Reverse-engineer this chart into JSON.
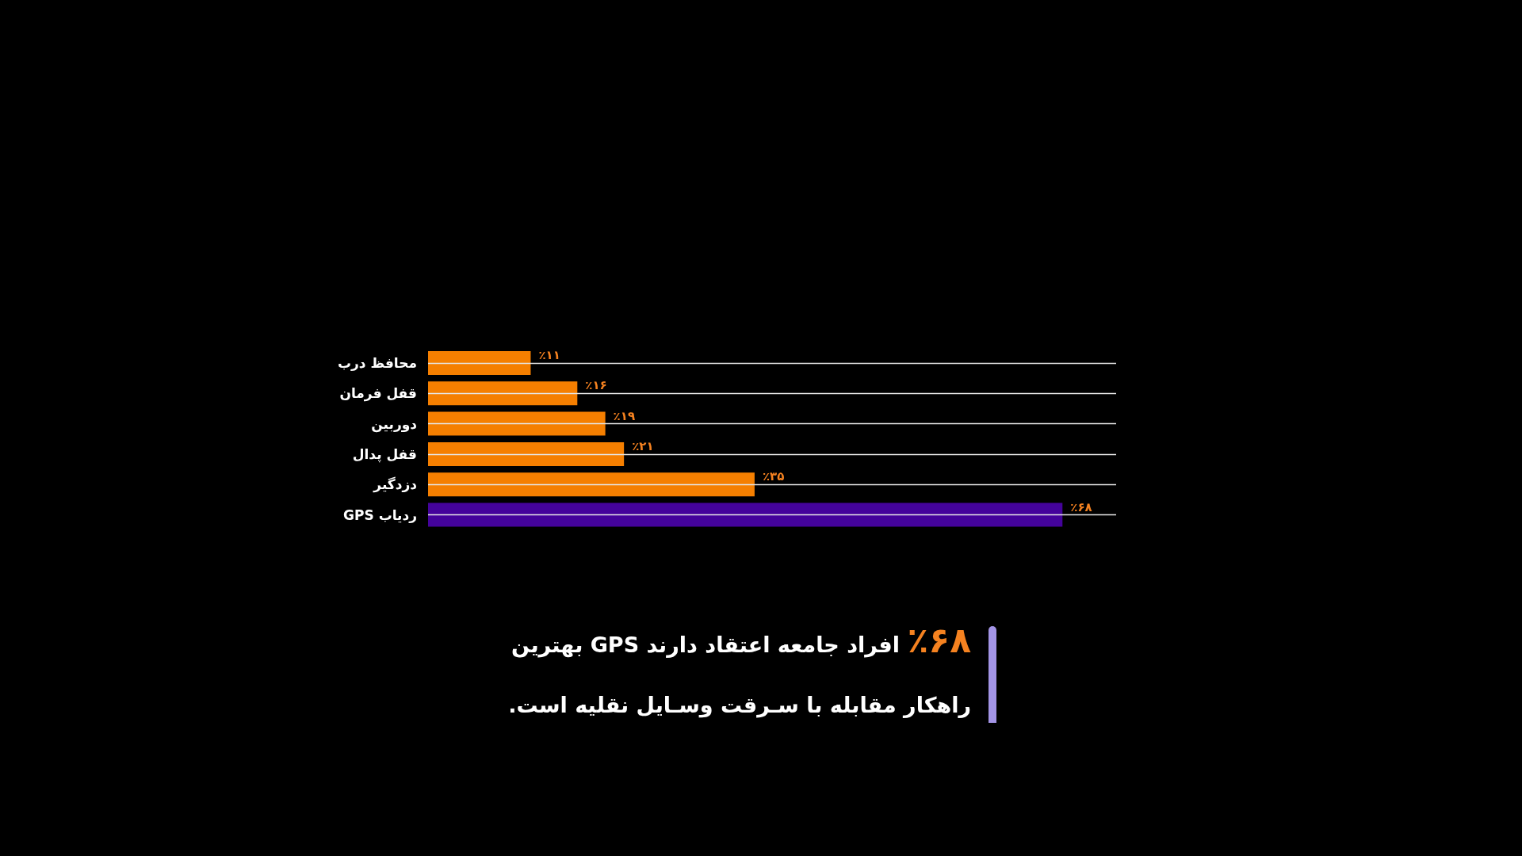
{
  "chart_data": {
    "type": "bar",
    "orientation": "horizontal",
    "categories": [
      "محافظ درب",
      "قفل فرمان",
      "دوربین",
      "قفل پدال",
      "دزدگیر",
      "ردیاب GPS"
    ],
    "values": [
      11,
      16,
      19,
      21,
      35,
      68
    ],
    "colors": [
      "#f57f00",
      "#f57f00",
      "#f57f00",
      "#f57f00",
      "#f57f00",
      "#44039b"
    ],
    "value_labels": [
      "٪۱۱",
      "٪۱۶",
      "٪۱۹",
      "٪۲۱",
      "٪۳۵",
      "٪۶۸"
    ],
    "grid": true,
    "annotations": [
      "٪۶۸ افراد جامعه اعتقاد دارند GPS بهترین راهکار مقابله با سـرقت وسـایل نقلیه است."
    ]
  }
}
